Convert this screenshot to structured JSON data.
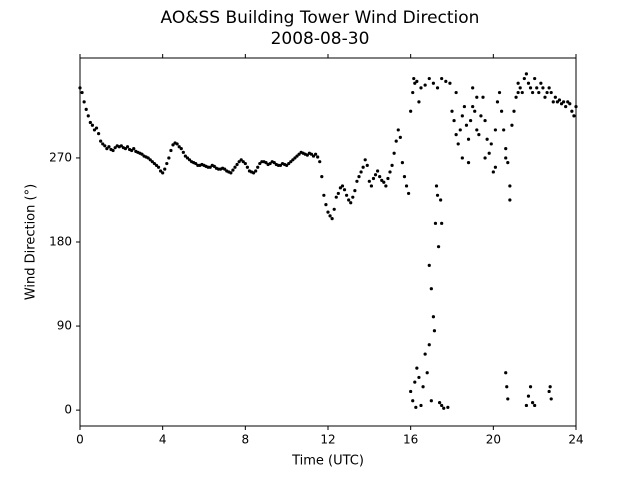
{
  "chart_data": {
    "type": "scatter",
    "title": "AO&SS Building Tower Wind Direction",
    "subtitle": "2008-08-30",
    "x_label": "Time (UTC)",
    "y_label": "Wind Direction (°)",
    "xlim": [
      0,
      24
    ],
    "ylim": [
      -17,
      377
    ],
    "xticks": [
      0,
      4,
      8,
      12,
      16,
      20,
      24
    ],
    "yticks": [
      0,
      90,
      180,
      270
    ],
    "color": "#000000",
    "x": [
      0,
      0.1,
      0.2,
      0.3,
      0.4,
      0.5,
      0.6,
      0.7,
      0.8,
      0.9,
      1,
      1.1,
      1.2,
      1.3,
      1.4,
      1.5,
      1.6,
      1.7,
      1.8,
      1.9,
      2,
      2.1,
      2.2,
      2.3,
      2.4,
      2.5,
      2.6,
      2.7,
      2.8,
      2.9,
      3,
      3.1,
      3.2,
      3.3,
      3.4,
      3.5,
      3.6,
      3.7,
      3.8,
      3.9,
      4,
      4.1,
      4.2,
      4.3,
      4.4,
      4.5,
      4.6,
      4.7,
      4.8,
      4.9,
      5,
      5.1,
      5.2,
      5.3,
      5.4,
      5.5,
      5.6,
      5.7,
      5.8,
      5.9,
      6,
      6.1,
      6.2,
      6.3,
      6.4,
      6.5,
      6.6,
      6.7,
      6.8,
      6.9,
      7,
      7.1,
      7.2,
      7.3,
      7.4,
      7.5,
      7.6,
      7.7,
      7.8,
      7.9,
      8,
      8.1,
      8.2,
      8.3,
      8.4,
      8.5,
      8.6,
      8.7,
      8.8,
      8.9,
      9,
      9.1,
      9.2,
      9.3,
      9.4,
      9.5,
      9.6,
      9.7,
      9.8,
      9.9,
      10,
      10.1,
      10.2,
      10.3,
      10.4,
      10.5,
      10.6,
      10.7,
      10.8,
      10.9,
      11,
      11.1,
      11.2,
      11.3,
      11.4,
      11.5,
      11.6,
      11.7,
      11.8,
      11.9,
      12,
      12.1,
      12.2,
      12.3,
      12.4,
      12.5,
      12.6,
      12.7,
      12.8,
      12.9,
      13,
      13.1,
      13.2,
      13.3,
      13.4,
      13.5,
      13.6,
      13.7,
      13.8,
      13.9,
      14,
      14.1,
      14.2,
      14.3,
      14.4,
      14.5,
      14.6,
      14.7,
      14.8,
      14.9,
      15,
      15.1,
      15.2,
      15.3,
      15.4,
      15.5,
      15.6,
      15.7,
      15.8,
      15.9,
      16,
      16.1,
      16.2,
      16.3,
      16.5,
      16.7,
      16.9,
      17.1,
      17.3,
      17.5,
      17.7,
      17.9,
      16.4,
      16.15,
      16,
      16.1,
      16.2,
      16.3,
      16.4,
      16.5,
      16.6,
      16.7,
      16.8,
      16.9,
      17,
      17.5,
      17.6,
      17.8,
      17.4,
      16.25,
      16.9,
      17,
      17.1,
      17.15,
      17.2,
      17.25,
      17.3,
      17.35,
      17.5,
      17.45,
      18,
      18.1,
      18.2,
      18.3,
      18.4,
      18.5,
      18.6,
      18.7,
      18.8,
      18.9,
      19,
      19.1,
      19.2,
      19.3,
      19.4,
      19.5,
      19.6,
      19.7,
      19.8,
      19.9,
      20,
      20.1,
      20.2,
      20.3,
      20.4,
      20.5,
      20.6,
      20.7,
      20.8,
      20.9,
      21,
      21.1,
      21.2,
      21.3,
      21.4,
      21.5,
      21.6,
      21.7,
      21.8,
      21.9,
      22,
      22.1,
      22.2,
      22.3,
      22.4,
      22.5,
      22.6,
      22.7,
      22.8,
      22.9,
      23,
      23.1,
      23.2,
      23.3,
      23.4,
      23.5,
      23.6,
      23.7,
      23.8,
      23.9,
      24,
      18.5,
      18.8,
      19.2,
      19.6,
      20.1,
      20.6,
      20.8,
      21.2,
      18.2,
      19,
      20.6,
      20.65,
      20.7,
      21.6,
      21.7,
      21.8,
      21.9,
      22,
      22.7,
      22.8,
      22.75
    ],
    "values": [
      345,
      340,
      330,
      322,
      315,
      308,
      305,
      300,
      302,
      296,
      288,
      285,
      283,
      280,
      282,
      279,
      278,
      281,
      283,
      282,
      283,
      281,
      280,
      282,
      279,
      278,
      280,
      277,
      276,
      275,
      274,
      272,
      271,
      270,
      268,
      266,
      264,
      262,
      260,
      256,
      254,
      258,
      264,
      270,
      278,
      284,
      286,
      285,
      282,
      280,
      276,
      272,
      270,
      268,
      266,
      265,
      264,
      262,
      262,
      263,
      262,
      261,
      260,
      260,
      262,
      261,
      259,
      258,
      258,
      259,
      258,
      256,
      255,
      254,
      257,
      260,
      263,
      266,
      268,
      266,
      264,
      260,
      256,
      255,
      254,
      256,
      260,
      264,
      266,
      266,
      265,
      263,
      264,
      266,
      265,
      263,
      262,
      262,
      264,
      263,
      262,
      264,
      266,
      268,
      270,
      272,
      274,
      276,
      275,
      274,
      273,
      275,
      274,
      272,
      274,
      271,
      266,
      250,
      230,
      220,
      212,
      208,
      205,
      215,
      228,
      232,
      238,
      240,
      236,
      230,
      225,
      222,
      228,
      235,
      245,
      250,
      255,
      260,
      268,
      262,
      245,
      240,
      248,
      252,
      256,
      250,
      246,
      244,
      240,
      248,
      255,
      262,
      275,
      288,
      300,
      292,
      265,
      250,
      240,
      232,
      320,
      340,
      350,
      352,
      345,
      348,
      355,
      350,
      345,
      355,
      352,
      350,
      330,
      355,
      20,
      10,
      30,
      45,
      35,
      5,
      25,
      60,
      40,
      70,
      10,
      5,
      2,
      3,
      8,
      3,
      155,
      130,
      100,
      85,
      200,
      240,
      230,
      175,
      200,
      225,
      320,
      310,
      295,
      285,
      300,
      315,
      325,
      305,
      290,
      310,
      325,
      320,
      300,
      295,
      315,
      335,
      310,
      290,
      275,
      285,
      255,
      300,
      330,
      340,
      320,
      300,
      280,
      265,
      240,
      305,
      320,
      335,
      350,
      345,
      340,
      355,
      360,
      350,
      345,
      340,
      355,
      345,
      340,
      350,
      345,
      335,
      340,
      345,
      340,
      330,
      335,
      330,
      332,
      328,
      330,
      325,
      330,
      328,
      320,
      315,
      325,
      270,
      265,
      335,
      270,
      260,
      270,
      225,
      340,
      340,
      345,
      40,
      25,
      12,
      5,
      15,
      25,
      8,
      5,
      20,
      12,
      25
    ]
  }
}
